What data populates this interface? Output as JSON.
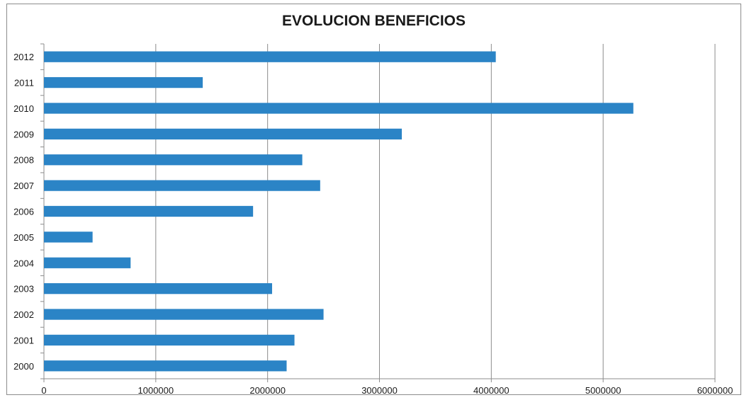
{
  "chart_data": {
    "type": "bar",
    "orientation": "horizontal",
    "title": "EVOLUCION BENEFICIOS",
    "xlabel": "",
    "ylabel": "",
    "categories": [
      "2000",
      "2001",
      "2002",
      "2003",
      "2004",
      "2005",
      "2006",
      "2007",
      "2008",
      "2009",
      "2010",
      "2011",
      "2012"
    ],
    "values": [
      2170000,
      2240000,
      2500000,
      2040000,
      775000,
      435000,
      1870000,
      2470000,
      2310000,
      3200000,
      5270000,
      1420000,
      4040000
    ],
    "xlim": [
      0,
      6000000
    ],
    "xticks": [
      "0",
      "1000000",
      "2000000",
      "3000000",
      "4000000",
      "5000000",
      "6000000"
    ],
    "grid": "vertical",
    "legend": "none",
    "bar_color": "#2b84c6",
    "grid_color": "#8c8c8c"
  }
}
